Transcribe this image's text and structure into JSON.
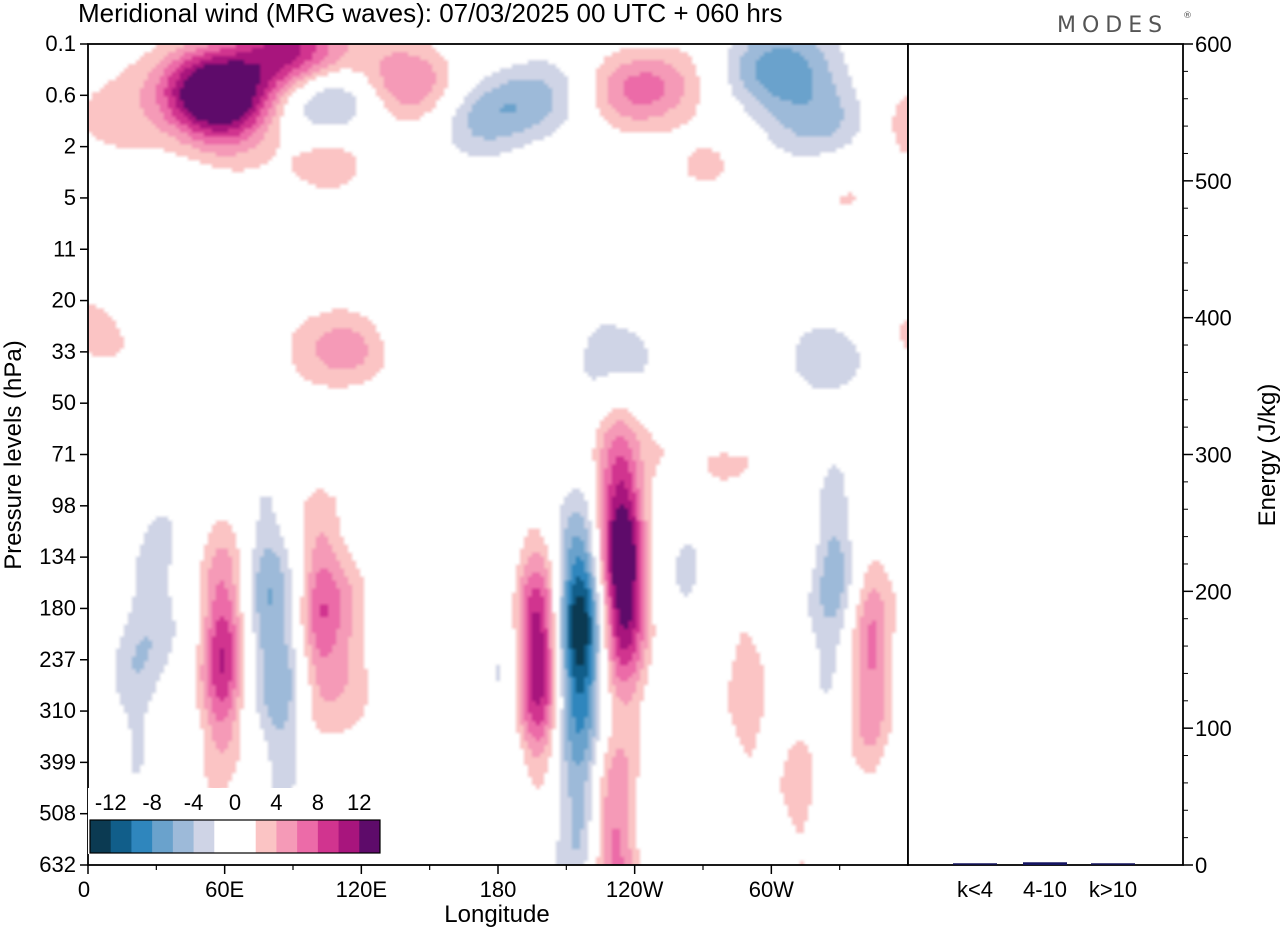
{
  "header": {
    "title": "Meridional wind (MRG waves):  07/03/2025  00 UTC  + 060 hrs",
    "brand": "MODES",
    "brand_mark": "®"
  },
  "chart_data": [
    {
      "type": "heatmap",
      "title": "Meridional wind (MRG waves):  07/03/2025  00 UTC  + 060 hrs",
      "xlabel": "Longitude",
      "ylabel": "Pressure levels (hPa)",
      "x_ticks": [
        "0",
        "60E",
        "120E",
        "180",
        "120W",
        "60W"
      ],
      "x_tick_degrees": [
        0,
        60,
        120,
        180,
        240,
        300
      ],
      "xlim": [
        0,
        360
      ],
      "y_ticks": [
        "0.1",
        "0.6",
        "2",
        "5",
        "11",
        "20",
        "33",
        "50",
        "71",
        "98",
        "134",
        "180",
        "237",
        "310",
        "399",
        "508",
        "632"
      ],
      "y_scale": "model-level (hPa, decreasing upward)",
      "colorbar": {
        "labels": [
          "-12",
          "-8",
          "-4",
          "0",
          "4",
          "8",
          "12"
        ],
        "placement": "bottom-left inside plot",
        "colors": [
          "#0b3a52",
          "#115e8a",
          "#2f86bd",
          "#6aa2cc",
          "#9dbad9",
          "#cfd4e6",
          "#ffffff",
          "#ffffff",
          "#fbc4c4",
          "#f59ab7",
          "#ec6ba8",
          "#d1348f",
          "#a8157d",
          "#5e0b6a"
        ]
      },
      "blobs": [
        {
          "lon": 48,
          "p": 0.4,
          "v": 8
        },
        {
          "lon": 60,
          "p": 0.6,
          "v": 10
        },
        {
          "lon": 85,
          "p": 0.12,
          "v": 10
        },
        {
          "lon": 110,
          "p": 0.18,
          "v": 3
        },
        {
          "lon": 105,
          "p": 0.6,
          "v": -7
        },
        {
          "lon": 140,
          "p": 0.35,
          "v": 6
        },
        {
          "lon": 175,
          "p": 1.0,
          "v": -4
        },
        {
          "lon": 195,
          "p": 0.6,
          "v": -4
        },
        {
          "lon": 245,
          "p": 0.45,
          "v": 7
        },
        {
          "lon": 305,
          "p": 0.2,
          "v": -7
        },
        {
          "lon": 320,
          "p": 1.0,
          "v": -5
        },
        {
          "lon": 5,
          "p": 1.0,
          "v": 3
        },
        {
          "lon": 60,
          "p": 1.5,
          "v": 3
        },
        {
          "lon": 105,
          "p": 2.5,
          "v": 3
        },
        {
          "lon": 270,
          "p": 3.0,
          "v": 2
        },
        {
          "lon": 340,
          "p": 5.0,
          "v": 2
        },
        {
          "lon": 112,
          "p": 31,
          "v": 6
        },
        {
          "lon": 135,
          "p": 28,
          "v": -2
        },
        {
          "lon": 10,
          "p": 30,
          "v": 2
        },
        {
          "lon": 230,
          "p": 28,
          "v": -2
        },
        {
          "lon": 330,
          "p": 33,
          "v": -4
        },
        {
          "lon": 350,
          "p": 26,
          "v": 2
        },
        {
          "lon": 20,
          "p": 240,
          "v": -3
        },
        {
          "lon": 30,
          "p": 180,
          "v": -3
        },
        {
          "lon": 58,
          "p": 237,
          "v": 10
        },
        {
          "lon": 78,
          "p": 180,
          "v": -5
        },
        {
          "lon": 85,
          "p": 320,
          "v": -4
        },
        {
          "lon": 102,
          "p": 190,
          "v": 7
        },
        {
          "lon": 115,
          "p": 210,
          "v": 3
        },
        {
          "lon": 185,
          "p": 250,
          "v": -2
        },
        {
          "lon": 197,
          "p": 237,
          "v": 12
        },
        {
          "lon": 216,
          "p": 200,
          "v": -13
        },
        {
          "lon": 236,
          "p": 155,
          "v": 13
        },
        {
          "lon": 232,
          "p": 95,
          "v": 5
        },
        {
          "lon": 232,
          "p": 560,
          "v": 7
        },
        {
          "lon": 215,
          "p": 480,
          "v": -5
        },
        {
          "lon": 265,
          "p": 150,
          "v": -2
        },
        {
          "lon": 290,
          "p": 280,
          "v": 3
        },
        {
          "lon": 318,
          "p": 300,
          "v": -3
        },
        {
          "lon": 328,
          "p": 150,
          "v": -5
        },
        {
          "lon": 345,
          "p": 237,
          "v": 7
        },
        {
          "lon": 315,
          "p": 399,
          "v": 5
        },
        {
          "lon": 250,
          "p": 71,
          "v": 2
        },
        {
          "lon": 230,
          "p": 40,
          "v": -2
        },
        {
          "lon": 285,
          "p": 75,
          "v": 2
        }
      ]
    },
    {
      "type": "bar",
      "categories": [
        "k<4",
        "4-10",
        "k>10"
      ],
      "values": [
        0,
        2,
        0
      ],
      "ylabel": "Energy (J/kg)",
      "ylim": [
        0,
        600
      ],
      "y_ticks": [
        "0",
        "100",
        "200",
        "300",
        "400",
        "500",
        "600"
      ],
      "bar_color": "#151560"
    }
  ]
}
